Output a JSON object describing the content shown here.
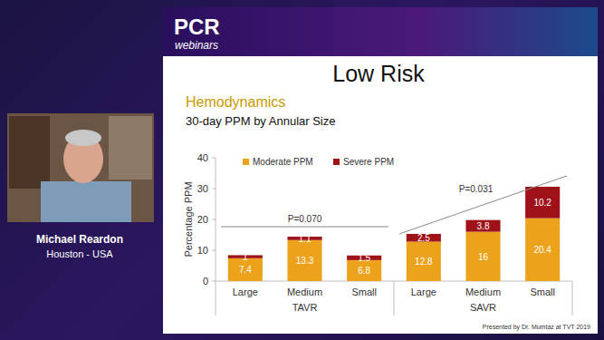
{
  "page": {
    "brand": "PCR",
    "brand_sub": "webinars",
    "speaker_name": "Michael Reardon",
    "speaker_location": "Houston - USA",
    "slide_title": "Low Risk",
    "section": "Hemodynamics",
    "credit": "Presented by Dr. Mumtaz at TVT 2019"
  },
  "chart_data": {
    "type": "bar",
    "stacked": true,
    "title": "30-day PPM by Annular Size",
    "y_label": "Percentage PPM",
    "categories": [
      "Large",
      "Medium",
      "Small",
      "Large",
      "Medium",
      "Small"
    ],
    "groups": [
      {
        "label": "TAVR",
        "p_value": "P=0.070"
      },
      {
        "label": "SAVR",
        "p_value": "P=0.031"
      }
    ],
    "series": [
      {
        "name": "Moderate PPM",
        "color": "#eda21c",
        "values": [
          7.4,
          13.3,
          6.8,
          12.8,
          16,
          20.4
        ]
      },
      {
        "name": "Severe PPM",
        "color": "#a0121a",
        "values": [
          1,
          1.1,
          1.5,
          2.5,
          3.8,
          10.2
        ]
      }
    ],
    "ylim": [
      0,
      40
    ],
    "yticks": [
      0,
      10,
      20,
      30,
      40
    ],
    "grid": false,
    "data_labels": true,
    "legend": "top-left"
  }
}
